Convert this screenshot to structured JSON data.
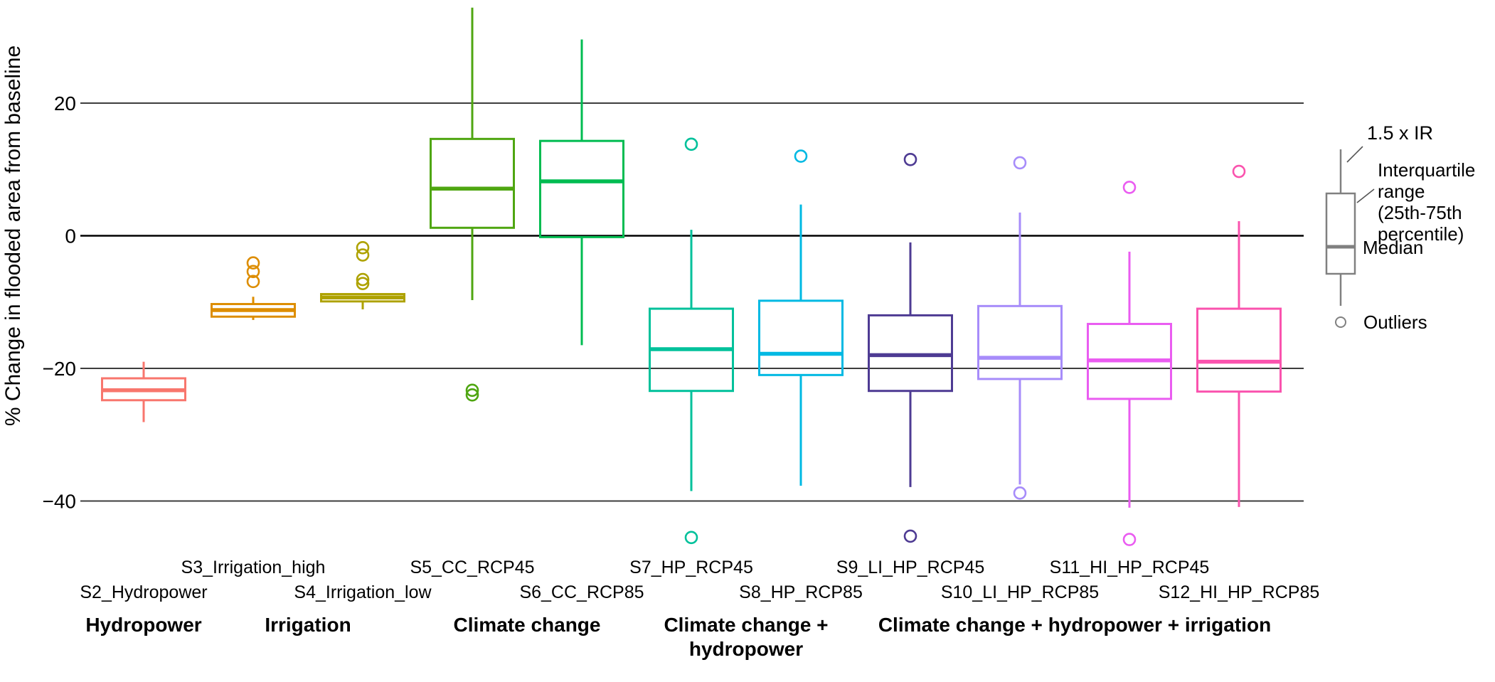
{
  "page": {
    "background": "#ffffff"
  },
  "legend": {
    "whisker_label": "1.5 x IR",
    "iqr_label_lines": [
      "Interquartile",
      "range",
      "(25th-75th",
      "percentile)"
    ],
    "median_label": "Median",
    "outliers_label": "Outliers",
    "color": "#808080"
  },
  "chart_data": {
    "type": "boxplot",
    "title": "",
    "xlabel": "",
    "ylabel": "% Change in flooded area from baseline",
    "ylim": [
      -48,
      35
    ],
    "grid": "horizontal",
    "legend_position": "right",
    "yticks": [
      {
        "value": 20,
        "label": "20"
      },
      {
        "value": 0,
        "label": "0"
      },
      {
        "value": -20,
        "label": "−20"
      },
      {
        "value": -40,
        "label": "−40"
      }
    ],
    "series": [
      {
        "name": "S2_Hydropower",
        "group": "Hydropower",
        "color": "#F8766D",
        "whisker_low": -28.1,
        "q1": -24.8,
        "median": -23.3,
        "q3": -21.5,
        "whisker_high": -19.0,
        "outliers": []
      },
      {
        "name": "S3_Irrigation_high",
        "group": "Irrigation",
        "color": "#DD8D00",
        "whisker_low": -12.7,
        "q1": -12.2,
        "median": -11.2,
        "q3": -10.3,
        "whisker_high": -9.2,
        "outliers": [
          -4.1,
          -5.4,
          -6.9
        ]
      },
      {
        "name": "S4_Irrigation_low",
        "group": "Irrigation",
        "color": "#AEA200",
        "whisker_low": -11.1,
        "q1": -9.9,
        "median": -9.3,
        "q3": -8.8,
        "whisker_high": -8.8,
        "outliers": [
          -1.8,
          -2.9,
          -6.6,
          -7.2
        ]
      },
      {
        "name": "S5_CC_RCP45",
        "group": "Climate change",
        "color": "#4FA611",
        "whisker_low": -9.7,
        "q1": 1.2,
        "median": 7.1,
        "q3": 14.6,
        "whisker_high": 34.4,
        "outliers": [
          -23.3,
          -24.0
        ]
      },
      {
        "name": "S6_CC_RCP85",
        "group": "Climate change",
        "color": "#00BC51",
        "whisker_low": -16.5,
        "q1": -0.2,
        "median": 8.2,
        "q3": 14.3,
        "whisker_high": 29.6,
        "outliers": []
      },
      {
        "name": "S7_HP_RCP45",
        "group": "Climate change + hydropower",
        "color": "#00C19B",
        "whisker_low": -38.5,
        "q1": -23.4,
        "median": -17.1,
        "q3": -11.0,
        "whisker_high": 0.9,
        "outliers": [
          13.8,
          -45.5
        ]
      },
      {
        "name": "S8_HP_RCP85",
        "group": "Climate change + hydropower",
        "color": "#00B9E3",
        "whisker_low": -37.7,
        "q1": -21.0,
        "median": -17.8,
        "q3": -9.8,
        "whisker_high": 4.7,
        "outliers": [
          12.0
        ]
      },
      {
        "name": "S9_LI_HP_RCP45",
        "group": "Climate change + hydropower + irrigation",
        "color": "#4E3B93",
        "whisker_low": -37.9,
        "q1": -23.4,
        "median": -18.0,
        "q3": -12.0,
        "whisker_high": -1.0,
        "outliers": [
          11.5,
          -45.3
        ]
      },
      {
        "name": "S10_LI_HP_RCP85",
        "group": "Climate change + hydropower + irrigation",
        "color": "#A78CFA",
        "whisker_low": -37.5,
        "q1": -21.6,
        "median": -18.4,
        "q3": -10.6,
        "whisker_high": 3.5,
        "outliers": [
          11.0,
          -38.8
        ]
      },
      {
        "name": "S11_HI_HP_RCP45",
        "group": "Climate change + hydropower + irrigation",
        "color": "#EA5CF1",
        "whisker_low": -41.0,
        "q1": -24.6,
        "median": -18.8,
        "q3": -13.3,
        "whisker_high": -2.4,
        "outliers": [
          7.3,
          -45.8
        ]
      },
      {
        "name": "S12_HI_HP_RCP85",
        "group": "Climate change + hydropower + irrigation",
        "color": "#FA53AE",
        "whisker_low": -40.9,
        "q1": -23.5,
        "median": -19.0,
        "q3": -11.0,
        "whisker_high": 2.2,
        "outliers": [
          9.7
        ]
      }
    ],
    "groups": [
      {
        "label_lines": [
          "Hydropower"
        ],
        "scenarios": [
          "S2_Hydropower"
        ]
      },
      {
        "label_lines": [
          "Irrigation"
        ],
        "scenarios": [
          "S3_Irrigation_high",
          "S4_Irrigation_low"
        ]
      },
      {
        "label_lines": [
          "Climate change"
        ],
        "scenarios": [
          "S5_CC_RCP45",
          "S6_CC_RCP85"
        ]
      },
      {
        "label_lines": [
          "Climate change +",
          "hydropower"
        ],
        "scenarios": [
          "S7_HP_RCP45",
          "S8_HP_RCP85"
        ]
      },
      {
        "label_lines": [
          "Climate change + hydropower + irrigation"
        ],
        "scenarios": [
          "S9_LI_HP_RCP45",
          "S10_LI_HP_RCP85",
          "S11_HI_HP_RCP45",
          "S12_HI_HP_RCP85"
        ]
      }
    ]
  }
}
